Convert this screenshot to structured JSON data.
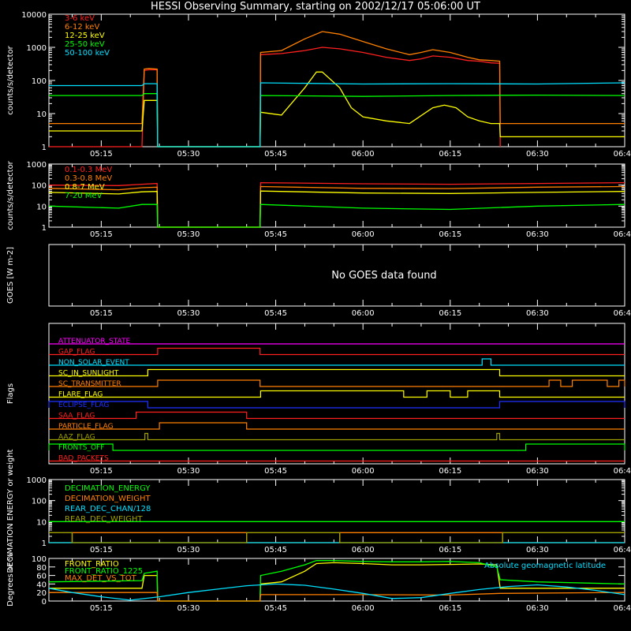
{
  "title": "HESSI Observing Summary, starting on 2002/12/17 05:06:00 UT",
  "time_ticks": [
    "05:15",
    "05:30",
    "05:45",
    "06:00",
    "06:15",
    "06:30",
    "06:45"
  ],
  "time_tick_minutes": [
    15,
    30,
    45,
    60,
    75,
    90,
    105
  ],
  "time_range_minutes": [
    6,
    105
  ],
  "chart_data": [
    {
      "type": "line",
      "panel": "low-energy-rates",
      "ylabel": "counts/s/detector",
      "yscale": "log",
      "ylim": [
        1,
        10000
      ],
      "ytick_labels": [
        "1",
        "10",
        "100",
        "1000",
        "10000"
      ],
      "grid": false,
      "legend": "top-left",
      "series": [
        {
          "name": "3-6 keV",
          "color": "#ff2020",
          "x": [
            6,
            22,
            22.4,
            23.2,
            24.6,
            24.7,
            42.3,
            42.4,
            46,
            50,
            53,
            56,
            60,
            64,
            68,
            70,
            72,
            75,
            78,
            80,
            82,
            83.5,
            83.6
          ],
          "y": [
            1,
            1,
            200,
            210,
            210,
            1,
            1,
            600,
            650,
            800,
            1000,
            900,
            700,
            500,
            400,
            450,
            550,
            500,
            400,
            380,
            340,
            330,
            1
          ]
        },
        {
          "name": "6-12 keV",
          "color": "#ff8000",
          "x": [
            6,
            22,
            22.4,
            23.2,
            24.6,
            24.7,
            42.3,
            42.4,
            46,
            50,
            53,
            56,
            60,
            64,
            68,
            70,
            72,
            75,
            78,
            80,
            82,
            83.5,
            83.6,
            105
          ],
          "y": [
            5,
            5,
            220,
            230,
            220,
            1,
            1,
            700,
            800,
            1800,
            3000,
            2500,
            1500,
            900,
            600,
            700,
            850,
            700,
            500,
            420,
            400,
            380,
            5,
            5
          ]
        },
        {
          "name": "12-25 keV",
          "color": "#ffff00",
          "x": [
            6,
            22,
            22.4,
            24.6,
            24.7,
            42.3,
            42.4,
            46,
            50,
            52,
            53,
            56,
            58,
            60,
            64,
            68,
            72,
            74,
            76,
            78,
            80,
            82,
            83.5,
            83.6,
            105
          ],
          "y": [
            3,
            3,
            25,
            25,
            1,
            1,
            11,
            9,
            60,
            180,
            180,
            60,
            15,
            8,
            6,
            5,
            15,
            18,
            15,
            8,
            6,
            5,
            5,
            2,
            2
          ]
        },
        {
          "name": "25-50 keV",
          "color": "#00ff00",
          "x": [
            6,
            22,
            22.4,
            24.6,
            24.7,
            42.3,
            42.4,
            60,
            75,
            90,
            105
          ],
          "y": [
            35,
            35,
            40,
            40,
            1,
            1,
            35,
            33,
            35,
            36,
            35
          ]
        },
        {
          "name": "50-100 keV",
          "color": "#00e0ff",
          "x": [
            6,
            22,
            22.4,
            24.6,
            24.7,
            42.3,
            42.4,
            60,
            75,
            90,
            105
          ],
          "y": [
            70,
            70,
            80,
            80,
            1,
            1,
            85,
            78,
            80,
            78,
            85
          ]
        }
      ]
    },
    {
      "type": "line",
      "panel": "high-energy-rates",
      "ylabel": "counts/s/detector",
      "yscale": "log",
      "ylim": [
        1,
        1000
      ],
      "ytick_labels": [
        "1",
        "10",
        "100",
        "1000"
      ],
      "legend": "top-left",
      "series": [
        {
          "name": "0.1-0.3 MeV",
          "color": "#ff2020",
          "x": [
            6,
            18,
            22,
            24.6,
            24.7,
            42.3,
            42.4,
            60,
            75,
            90,
            105
          ],
          "y": [
            100,
            95,
            110,
            120,
            1,
            1,
            130,
            115,
            110,
            120,
            130
          ]
        },
        {
          "name": "0.3-0.8 MeV",
          "color": "#ff8000",
          "x": [
            6,
            18,
            22,
            24.6,
            24.7,
            42.3,
            42.4,
            60,
            75,
            90,
            105
          ],
          "y": [
            70,
            60,
            75,
            80,
            1,
            1,
            85,
            70,
            68,
            80,
            85
          ]
        },
        {
          "name": "0.8-7 MeV",
          "color": "#ffff00",
          "x": [
            6,
            18,
            22,
            24.6,
            24.7,
            42.3,
            42.4,
            60,
            75,
            90,
            105
          ],
          "y": [
            45,
            38,
            48,
            50,
            1,
            1,
            52,
            42,
            40,
            45,
            50
          ]
        },
        {
          "name": "7-20 MeV",
          "color": "#00ff00",
          "x": [
            6,
            18,
            22,
            24.6,
            24.7,
            42.3,
            42.4,
            60,
            75,
            90,
            105
          ],
          "y": [
            10,
            8,
            12,
            12,
            1,
            1,
            12,
            8,
            7,
            10,
            12
          ]
        }
      ]
    },
    {
      "type": "line",
      "panel": "goes",
      "ylabel": "GOES [W m-2]",
      "message": "No GOES data found",
      "series": []
    },
    {
      "type": "line",
      "panel": "flags",
      "ylabel": "Flags",
      "series": [
        {
          "name": "ATTENUATOR_STATE",
          "color": "#ff00ff",
          "on_intervals": []
        },
        {
          "name": "GAP_FLAG",
          "color": "#ff2020",
          "on_intervals": [
            [
              24.7,
              42.3
            ]
          ]
        },
        {
          "name": "NON_SOLAR_EVENT",
          "color": "#00e0ff",
          "on_intervals": [
            [
              80.5,
              82
            ]
          ]
        },
        {
          "name": "SC_IN_SUNLIGHT",
          "color": "#ffff00",
          "on_intervals": [
            [
              23,
              83.5
            ]
          ]
        },
        {
          "name": "SC_TRANSMITTER",
          "color": "#ff8000",
          "on_intervals": [
            [
              24.7,
              42.3
            ],
            [
              92,
              94
            ],
            [
              96,
              102
            ],
            [
              104,
              105
            ]
          ]
        },
        {
          "name": "FLARE_FLAG",
          "color": "#ffff00",
          "on_intervals": [
            [
              42.4,
              67
            ],
            [
              71,
              75
            ],
            [
              78,
              83.5
            ]
          ]
        },
        {
          "name": "ECLIPSE_FLAG",
          "color": "#2030ff",
          "on_intervals": [
            [
              6,
              23
            ],
            [
              83.5,
              105
            ]
          ]
        },
        {
          "name": "SAA_FLAG",
          "color": "#ff2020",
          "on_intervals": [
            [
              21,
              40
            ]
          ]
        },
        {
          "name": "PARTICLE_FLAG",
          "color": "#ff8000",
          "on_intervals": [
            [
              25,
              40
            ]
          ]
        },
        {
          "name": "AAZ_FLAG",
          "color": "#a0a000",
          "on_intervals": [
            [
              22.5,
              23
            ],
            [
              83,
              83.5
            ]
          ]
        },
        {
          "name": "FRONTS_OFF",
          "color": "#00ff00",
          "on_intervals": [
            [
              6,
              17
            ],
            [
              88,
              105
            ]
          ]
        },
        {
          "name": "BAD_PACKETS",
          "color": "#ff2020",
          "on_intervals": []
        }
      ]
    },
    {
      "type": "line",
      "panel": "decimation",
      "ylabel": "DECIMATION ENERGY or weight",
      "yscale": "log",
      "ylim": [
        1,
        1000
      ],
      "ytick_labels": [
        "1",
        "10",
        "100",
        "1000"
      ],
      "legend": "top-left",
      "series": [
        {
          "name": "DECIMATION_ENERGY",
          "color": "#00ff00",
          "x": [
            6,
            105
          ],
          "y": [
            10,
            10
          ]
        },
        {
          "name": "DECIMATION_WEIGHT",
          "color": "#ff8000",
          "x": [
            6,
            10,
            10,
            40,
            40,
            56,
            56,
            84,
            84,
            105
          ],
          "y": [
            1,
            1,
            3,
            3,
            1,
            1,
            3,
            3,
            1,
            1
          ]
        },
        {
          "name": "REAR_DEC_CHAN/128",
          "color": "#00e0ff",
          "x": [
            6,
            105
          ],
          "y": [
            1,
            1
          ]
        },
        {
          "name": "REAR_DEC_WEIGHT",
          "color": "#a0a000",
          "x": [
            6,
            10,
            10,
            40,
            40,
            56,
            56,
            84,
            84,
            105
          ],
          "y": [
            3,
            3,
            1,
            1,
            3,
            3,
            1,
            1,
            3,
            3
          ]
        }
      ]
    },
    {
      "type": "line",
      "panel": "ratios",
      "ylabel": "Degrees or %",
      "ylim": [
        0,
        100
      ],
      "ytick_labels": [
        "0",
        "20",
        "40",
        "60",
        "80",
        "100"
      ],
      "legend": "top-left",
      "series": [
        {
          "name": "FRONT_RATIO",
          "color": "#ffff00",
          "x": [
            6,
            22,
            22.4,
            24.6,
            24.7,
            42.3,
            42.4,
            46,
            50,
            52,
            55,
            60,
            65,
            70,
            75,
            80,
            83,
            83.6,
            105
          ],
          "y": [
            30,
            30,
            60,
            60,
            0,
            0,
            40,
            45,
            70,
            88,
            90,
            88,
            85,
            85,
            86,
            87,
            85,
            30,
            30
          ]
        },
        {
          "name": "FRONT_RATIO_1225",
          "color": "#00ff00",
          "x": [
            6,
            22,
            22.4,
            24.6,
            24.7,
            42.3,
            42.4,
            46,
            50,
            52,
            55,
            60,
            65,
            70,
            75,
            80,
            83,
            83.6,
            90,
            105
          ],
          "y": [
            45,
            48,
            65,
            70,
            0,
            0,
            60,
            70,
            85,
            95,
            95,
            93,
            92,
            92,
            93,
            90,
            80,
            50,
            45,
            40
          ]
        },
        {
          "name": "MAX_DET_VS_TOT",
          "color": "#ff8000",
          "x": [
            6,
            22,
            24.6,
            24.7,
            42.3,
            42.4,
            60,
            75,
            83.6,
            105
          ],
          "y": [
            20,
            20,
            20,
            0,
            0,
            15,
            15,
            14,
            18,
            20
          ]
        },
        {
          "name": "Absolute geomagnetic latitude",
          "color": "#00e0ff",
          "x": [
            6,
            10,
            15,
            20,
            25,
            30,
            35,
            40,
            45,
            50,
            55,
            60,
            65,
            70,
            75,
            80,
            85,
            90,
            95,
            100,
            105
          ],
          "y": [
            30,
            20,
            10,
            2,
            10,
            20,
            28,
            36,
            40,
            37,
            28,
            18,
            6,
            8,
            18,
            27,
            34,
            38,
            33,
            25,
            15
          ]
        }
      ]
    }
  ]
}
